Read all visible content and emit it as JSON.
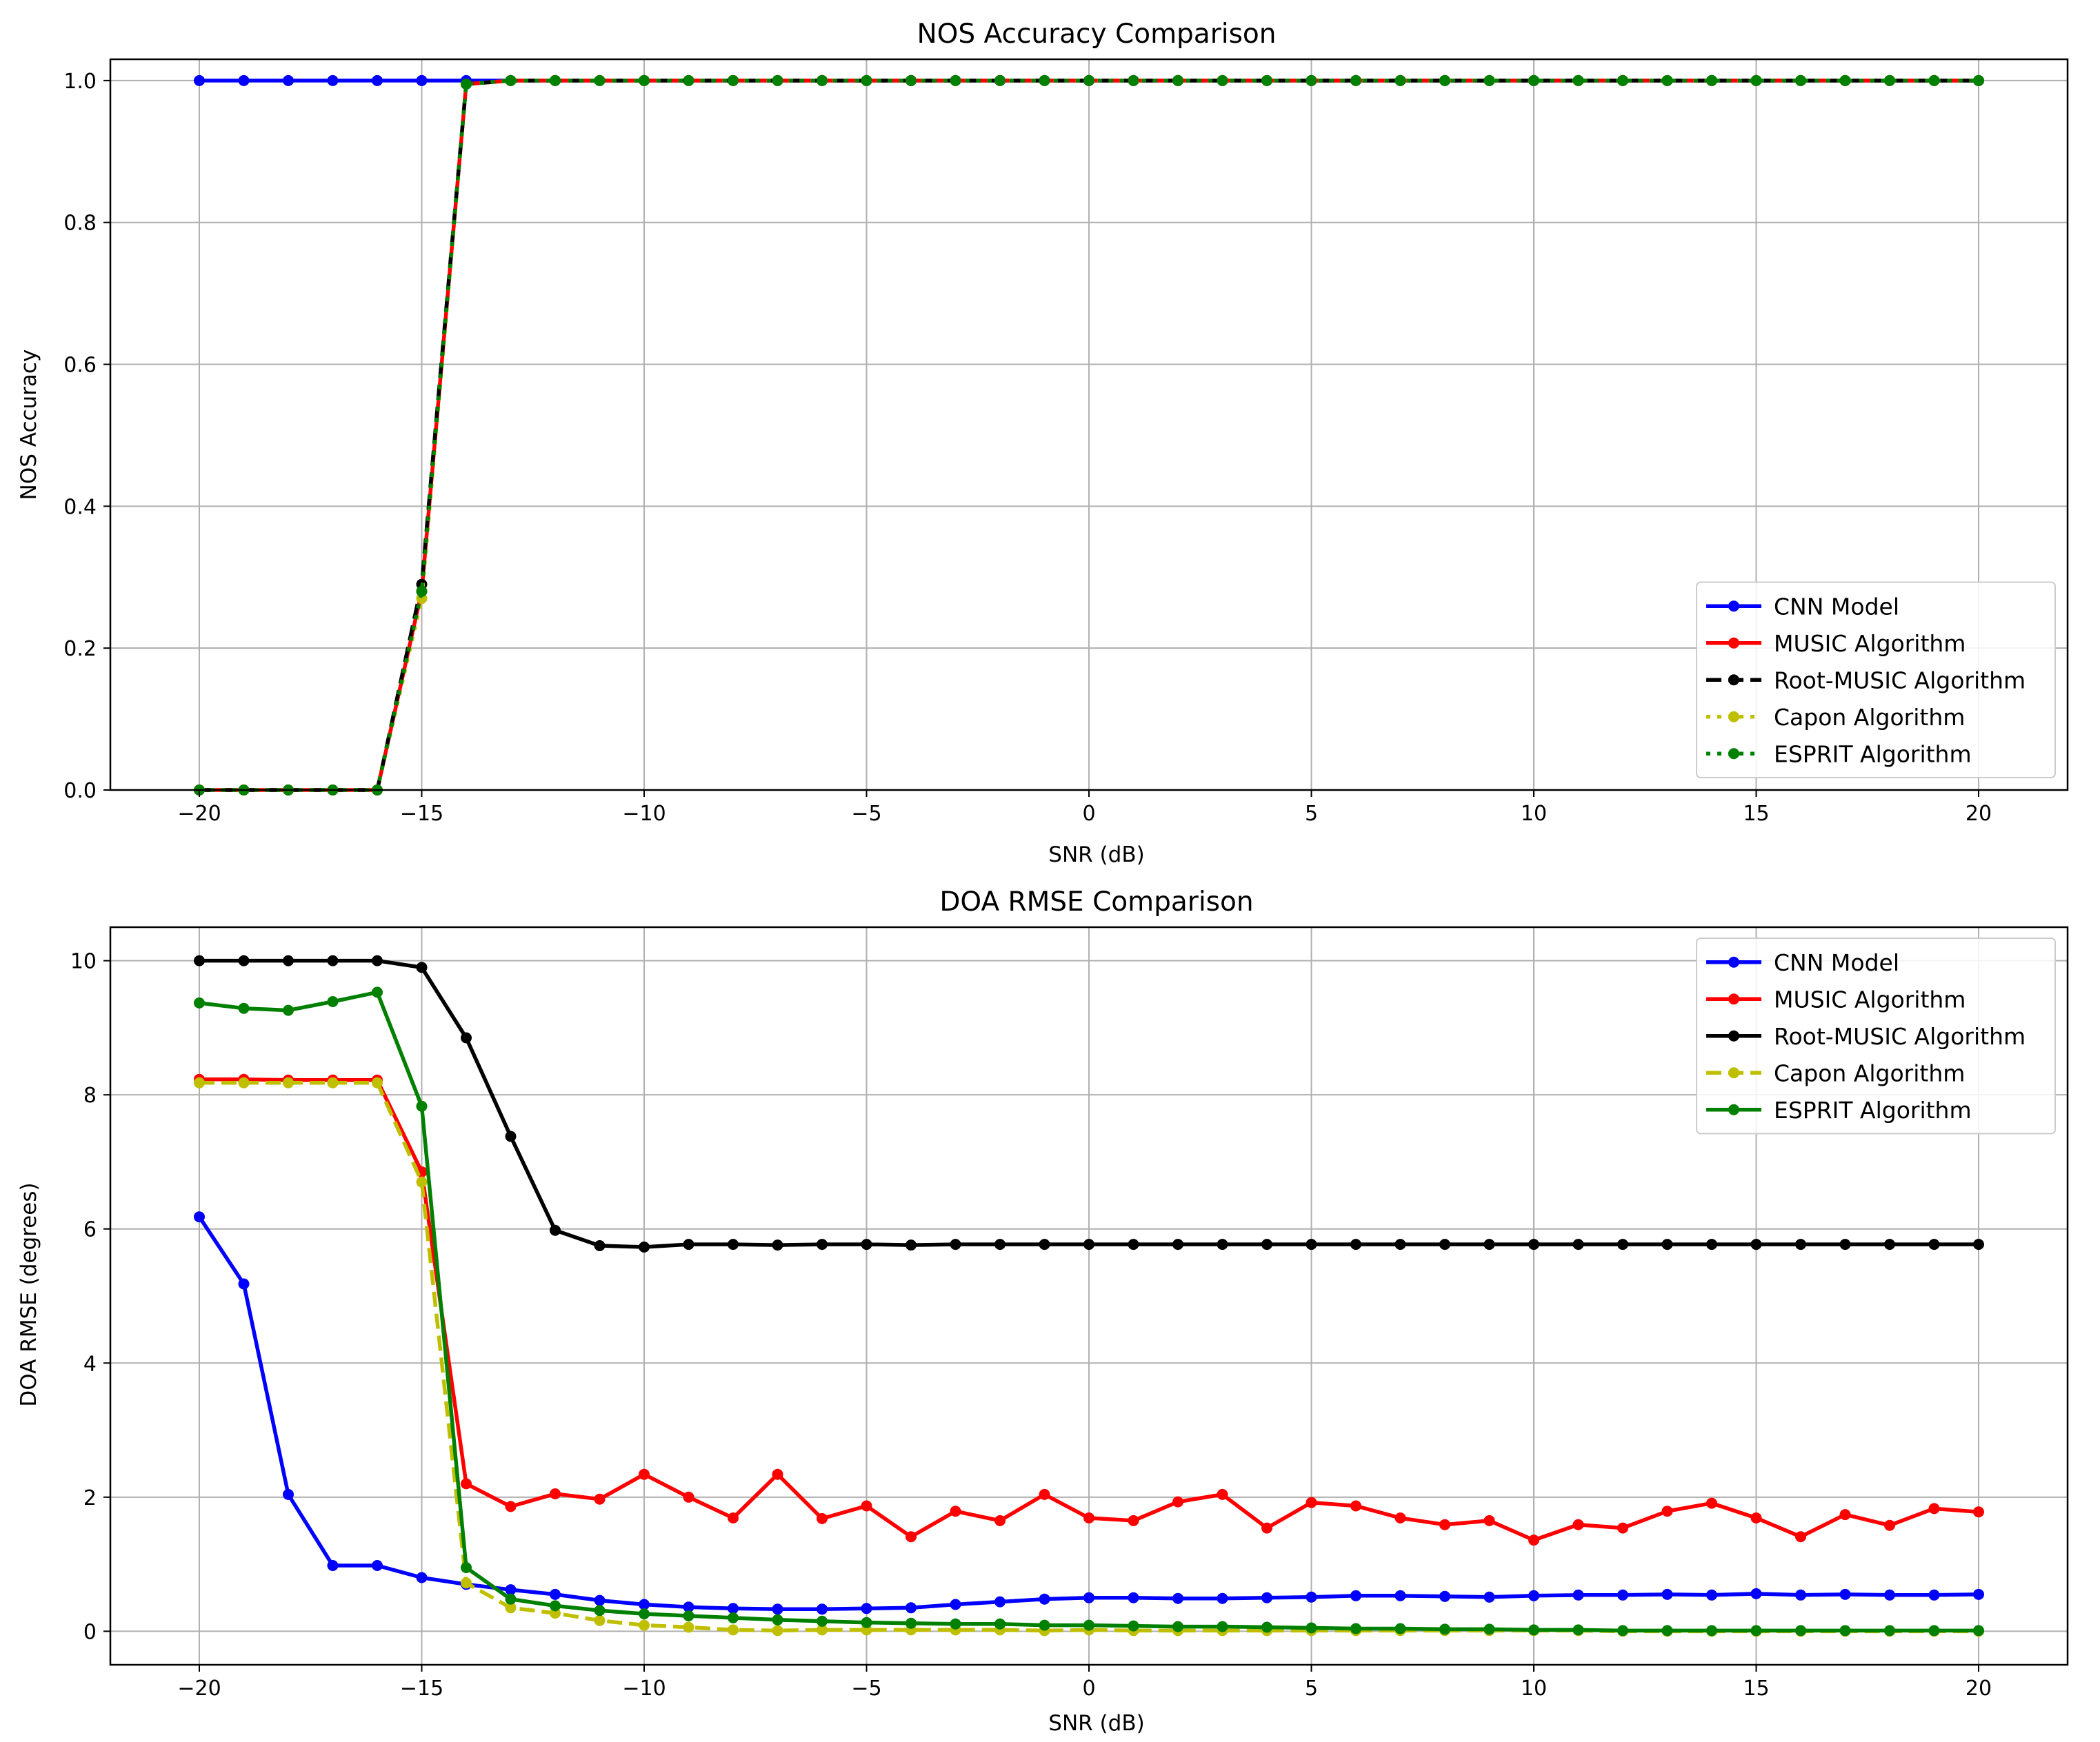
{
  "chart_data": [
    {
      "type": "line",
      "title": "NOS Accuracy Comparison",
      "xlabel": "SNR (dB)",
      "ylabel": "NOS Accuracy",
      "xlim": [
        -22,
        22
      ],
      "ylim": [
        0,
        1.03
      ],
      "xticks": [
        -20,
        -15,
        -10,
        -5,
        0,
        5,
        10,
        15,
        20
      ],
      "yticks": [
        0.0,
        0.2,
        0.4,
        0.6,
        0.8,
        1.0
      ],
      "ytick_labels": [
        "0.0",
        "0.2",
        "0.4",
        "0.6",
        "0.8",
        "1.0"
      ],
      "grid": true,
      "legend_position": "lower-right",
      "x": [
        -20,
        -19,
        -18,
        -17,
        -16,
        -15,
        -14,
        -13,
        -12,
        -11,
        -10,
        -9,
        -8,
        -7,
        -6,
        -5,
        -4,
        -3,
        -2,
        -1,
        0,
        1,
        2,
        3,
        4,
        5,
        6,
        7,
        8,
        9,
        10,
        11,
        12,
        13,
        14,
        15,
        16,
        17,
        18,
        19,
        20
      ],
      "series": [
        {
          "name": "CNN Model",
          "color": "#0000ff",
          "linestyle": "solid",
          "values": [
            1,
            1,
            1,
            1,
            1,
            1,
            1,
            1,
            1,
            1,
            1,
            1,
            1,
            1,
            1,
            1,
            1,
            1,
            1,
            1,
            1,
            1,
            1,
            1,
            1,
            1,
            1,
            1,
            1,
            1,
            1,
            1,
            1,
            1,
            1,
            1,
            1,
            1,
            1,
            1,
            1
          ]
        },
        {
          "name": "MUSIC Algorithm",
          "color": "#ff0000",
          "linestyle": "solid",
          "values": [
            0,
            0,
            0,
            0,
            0,
            0.28,
            0.995,
            1,
            1,
            1,
            1,
            1,
            1,
            1,
            1,
            1,
            1,
            1,
            1,
            1,
            1,
            1,
            1,
            1,
            1,
            1,
            1,
            1,
            1,
            1,
            1,
            1,
            1,
            1,
            1,
            1,
            1,
            1,
            1,
            1,
            1
          ]
        },
        {
          "name": "Root-MUSIC Algorithm",
          "color": "#000000",
          "linestyle": "dashed",
          "values": [
            0,
            0,
            0,
            0,
            0,
            0.29,
            0.995,
            1,
            1,
            1,
            1,
            1,
            1,
            1,
            1,
            1,
            1,
            1,
            1,
            1,
            1,
            1,
            1,
            1,
            1,
            1,
            1,
            1,
            1,
            1,
            1,
            1,
            1,
            1,
            1,
            1,
            1,
            1,
            1,
            1,
            1
          ]
        },
        {
          "name": "Capon Algorithm",
          "color": "#bfbf00",
          "linestyle": "dotted",
          "values": [
            0,
            0,
            0,
            0,
            0,
            0.27,
            0.995,
            1,
            1,
            1,
            1,
            1,
            1,
            1,
            1,
            1,
            1,
            1,
            1,
            1,
            1,
            1,
            1,
            1,
            1,
            1,
            1,
            1,
            1,
            1,
            1,
            1,
            1,
            1,
            1,
            1,
            1,
            1,
            1,
            1,
            1
          ]
        },
        {
          "name": "ESPRIT Algorithm",
          "color": "#008000",
          "linestyle": "dotted",
          "values": [
            0,
            0,
            0,
            0,
            0,
            0.28,
            0.995,
            1,
            1,
            1,
            1,
            1,
            1,
            1,
            1,
            1,
            1,
            1,
            1,
            1,
            1,
            1,
            1,
            1,
            1,
            1,
            1,
            1,
            1,
            1,
            1,
            1,
            1,
            1,
            1,
            1,
            1,
            1,
            1,
            1,
            1
          ]
        }
      ]
    },
    {
      "type": "line",
      "title": "DOA RMSE Comparison",
      "xlabel": "SNR (dB)",
      "ylabel": "DOA RMSE (degrees)",
      "xlim": [
        -22,
        22
      ],
      "ylim": [
        -0.5,
        10.5
      ],
      "xticks": [
        -20,
        -15,
        -10,
        -5,
        0,
        5,
        10,
        15,
        20
      ],
      "yticks": [
        0,
        2,
        4,
        6,
        8,
        10
      ],
      "ytick_labels": [
        "0",
        "2",
        "4",
        "6",
        "8",
        "10"
      ],
      "grid": true,
      "legend_position": "upper-right",
      "x": [
        -20,
        -19,
        -18,
        -17,
        -16,
        -15,
        -14,
        -13,
        -12,
        -11,
        -10,
        -9,
        -8,
        -7,
        -6,
        -5,
        -4,
        -3,
        -2,
        -1,
        0,
        1,
        2,
        3,
        4,
        5,
        6,
        7,
        8,
        9,
        10,
        11,
        12,
        13,
        14,
        15,
        16,
        17,
        18,
        19,
        20
      ],
      "series": [
        {
          "name": "CNN Model",
          "color": "#0000ff",
          "linestyle": "solid",
          "values": [
            6.18,
            5.18,
            2.04,
            0.98,
            0.98,
            0.8,
            0.7,
            0.62,
            0.55,
            0.46,
            0.4,
            0.36,
            0.34,
            0.33,
            0.33,
            0.34,
            0.35,
            0.4,
            0.44,
            0.48,
            0.5,
            0.5,
            0.49,
            0.49,
            0.5,
            0.51,
            0.53,
            0.53,
            0.52,
            0.51,
            0.53,
            0.54,
            0.54,
            0.55,
            0.54,
            0.56,
            0.54,
            0.55,
            0.54,
            0.54,
            0.55
          ]
        },
        {
          "name": "MUSIC Algorithm",
          "color": "#ff0000",
          "linestyle": "solid",
          "values": [
            8.23,
            8.23,
            8.22,
            8.22,
            8.22,
            6.85,
            2.2,
            1.86,
            2.05,
            1.97,
            2.34,
            2.0,
            1.69,
            2.34,
            1.68,
            1.87,
            1.41,
            1.79,
            1.65,
            2.04,
            1.69,
            1.65,
            1.93,
            2.04,
            1.54,
            1.92,
            1.87,
            1.69,
            1.59,
            1.65,
            1.36,
            1.59,
            1.54,
            1.79,
            1.91,
            1.69,
            1.41,
            1.74,
            1.58,
            1.83,
            1.78
          ]
        },
        {
          "name": "Root-MUSIC Algorithm",
          "color": "#000000",
          "linestyle": "solid",
          "values": [
            10.0,
            10.0,
            10.0,
            10.0,
            10.0,
            9.9,
            8.85,
            7.38,
            5.98,
            5.75,
            5.73,
            5.77,
            5.77,
            5.76,
            5.77,
            5.77,
            5.76,
            5.77,
            5.77,
            5.77,
            5.77,
            5.77,
            5.77,
            5.77,
            5.77,
            5.77,
            5.77,
            5.77,
            5.77,
            5.77,
            5.77,
            5.77,
            5.77,
            5.77,
            5.77,
            5.77,
            5.77,
            5.77,
            5.77,
            5.77,
            5.77
          ]
        },
        {
          "name": "Capon Algorithm",
          "color": "#bfbf00",
          "linestyle": "dashed",
          "values": [
            8.18,
            8.18,
            8.18,
            8.18,
            8.18,
            6.7,
            0.72,
            0.35,
            0.27,
            0.16,
            0.09,
            0.06,
            0.02,
            0.01,
            0.02,
            0.02,
            0.02,
            0.02,
            0.02,
            0.01,
            0.02,
            0.01,
            0.01,
            0.01,
            0.01,
            0.01,
            0.01,
            0.01,
            0.01,
            0.01,
            0.01,
            0.01,
            0.0,
            0.0,
            0.0,
            0.0,
            0.0,
            0.0,
            0.0,
            0.0,
            0.0
          ]
        },
        {
          "name": "ESPRIT Algorithm",
          "color": "#008000",
          "linestyle": "solid",
          "values": [
            9.37,
            9.29,
            9.26,
            9.39,
            9.53,
            7.83,
            0.95,
            0.48,
            0.38,
            0.31,
            0.26,
            0.23,
            0.2,
            0.17,
            0.15,
            0.13,
            0.12,
            0.11,
            0.11,
            0.09,
            0.09,
            0.08,
            0.07,
            0.07,
            0.06,
            0.05,
            0.04,
            0.04,
            0.03,
            0.03,
            0.02,
            0.02,
            0.01,
            0.01,
            0.01,
            0.01,
            0.01,
            0.01,
            0.01,
            0.01,
            0.01
          ]
        }
      ]
    }
  ]
}
